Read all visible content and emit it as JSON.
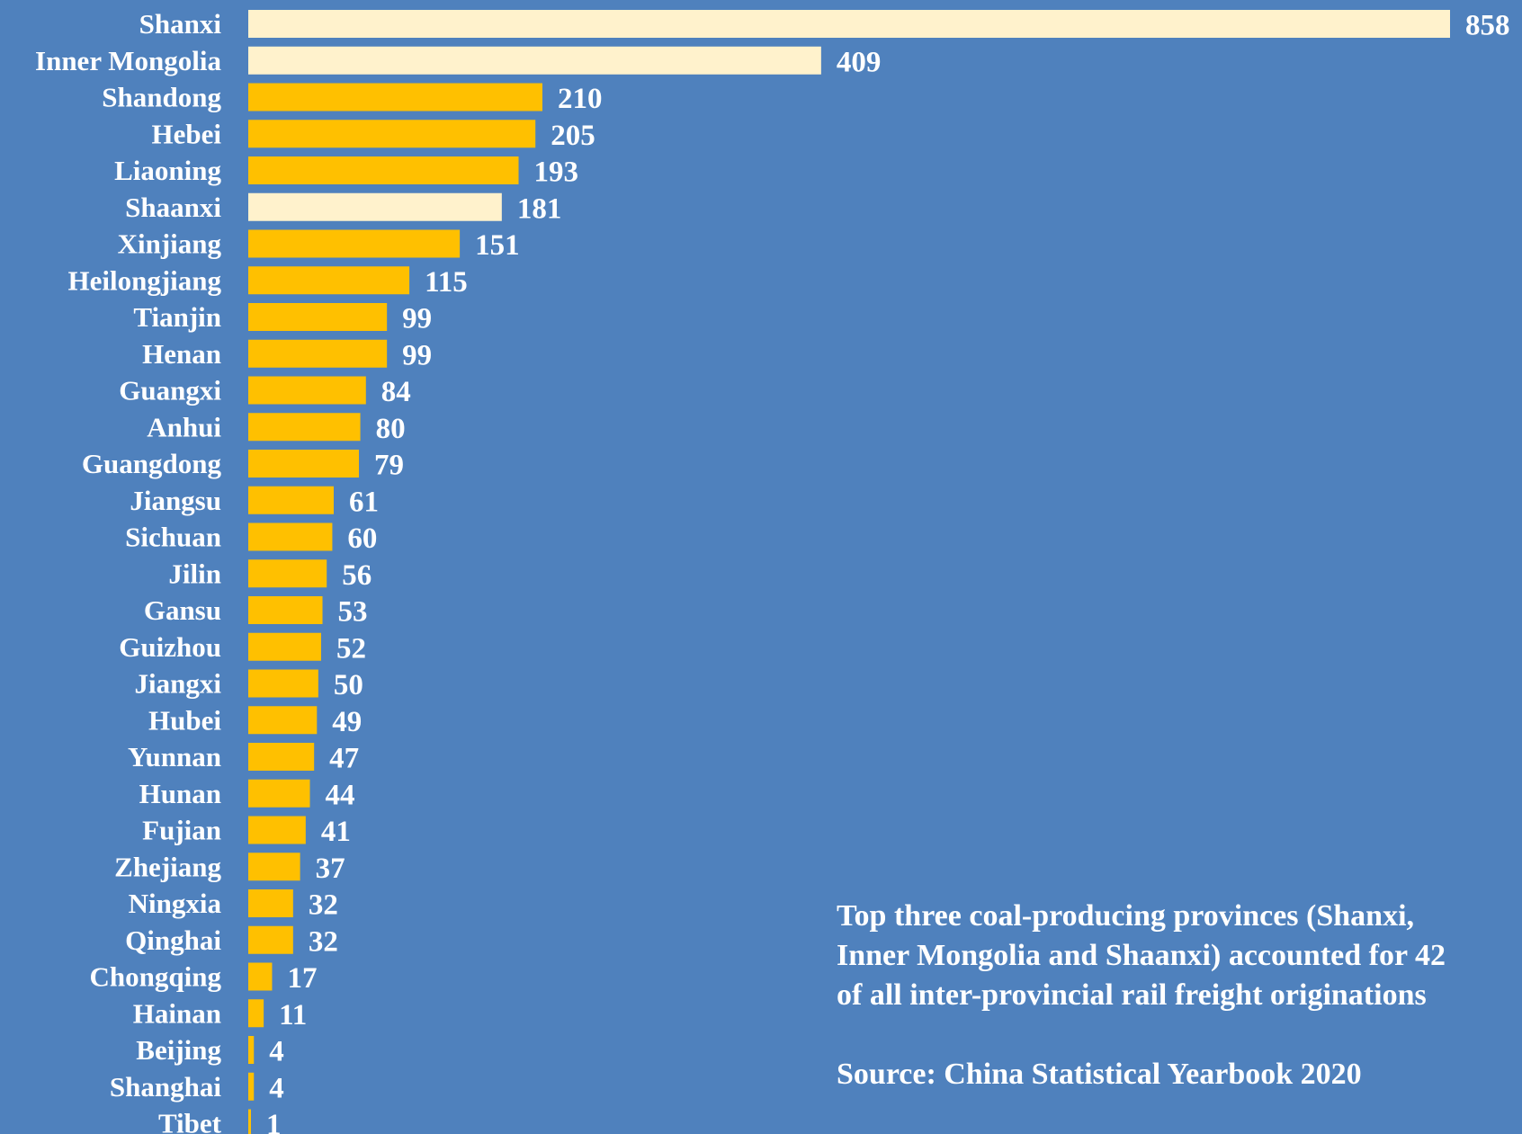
{
  "chart_data": {
    "type": "bar",
    "orientation": "horizontal",
    "categories": [
      "Shanxi",
      "Inner Mongolia",
      "Shandong",
      "Hebei",
      "Liaoning",
      "Shaanxi",
      "Xinjiang",
      "Heilongjiang",
      "Tianjin",
      "Henan",
      "Guangxi",
      "Anhui",
      "Guangdong",
      "Jiangsu",
      "Sichuan",
      "Jilin",
      "Gansu",
      "Guizhou",
      "Jiangxi",
      "Hubei",
      "Yunnan",
      "Hunan",
      "Fujian",
      "Zhejiang",
      "Ningxia",
      "Qinghai",
      "Chongqing",
      "Hainan",
      "Beijing",
      "Shanghai",
      "Tibet"
    ],
    "values": [
      858,
      409,
      210,
      205,
      193,
      181,
      151,
      115,
      99,
      99,
      84,
      80,
      79,
      61,
      60,
      56,
      53,
      52,
      50,
      49,
      47,
      44,
      41,
      37,
      32,
      32,
      17,
      11,
      4,
      4,
      1
    ],
    "highlighted": [
      "Shanxi",
      "Inner Mongolia",
      "Shaanxi"
    ],
    "title": "",
    "xlabel": "",
    "ylabel": "",
    "xlim": [
      0,
      858
    ],
    "grid": false,
    "legend": "none",
    "data_labels": true
  },
  "colors": {
    "background": "#4F81BD",
    "bar_default": "#FFC000",
    "bar_highlight": "#FFF2CC",
    "text": "#FFFFFF"
  },
  "annotation": {
    "lines": [
      "Top three coal-producing provinces (Shanxi,",
      "Inner Mongolia and Shaanxi) accounted for 42",
      "of all inter-provincial rail freight originations"
    ],
    "source": "Source: China Statistical Yearbook 2020"
  }
}
